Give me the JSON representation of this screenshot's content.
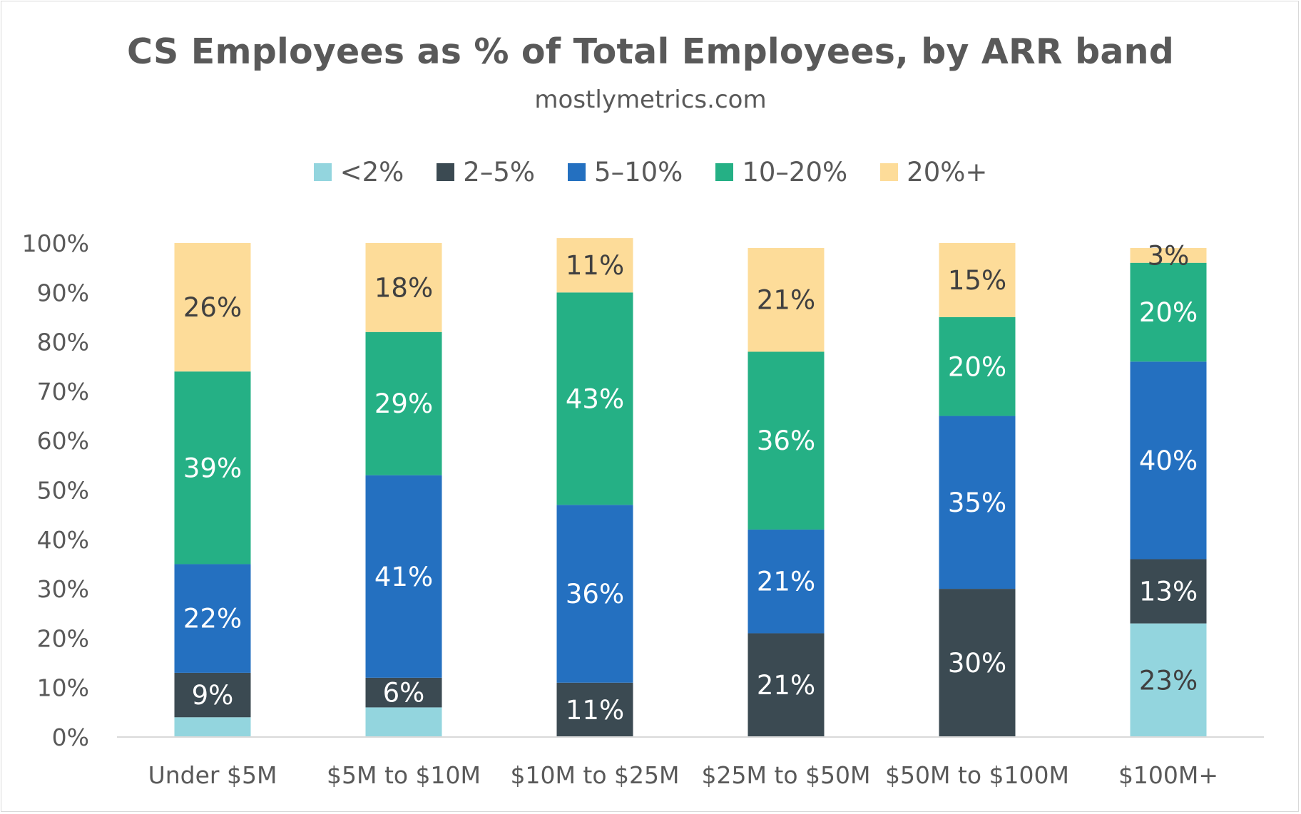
{
  "chart_data": {
    "type": "bar",
    "stacked": true,
    "title": "CS Employees as % of Total Employees, by ARR band",
    "subtitle": "mostlymetrics.com",
    "categories": [
      "Under $5M",
      "$5M to $10M",
      "$10M to $25M",
      "$25M to $50M",
      "$50M to $100M",
      "$100M+"
    ],
    "series": [
      {
        "name": "<2%",
        "color": "#93d5de",
        "label_color": "#404040",
        "values": [
          4,
          6,
          0,
          0,
          0,
          23
        ],
        "labels": [
          "",
          "",
          "",
          "",
          "",
          "23%"
        ]
      },
      {
        "name": "2–5%",
        "color": "#3b4a52",
        "label_color": "#ffffff",
        "values": [
          9,
          6,
          11,
          21,
          30,
          13
        ],
        "labels": [
          "9%",
          "6%",
          "11%",
          "21%",
          "30%",
          "13%"
        ]
      },
      {
        "name": "5–10%",
        "color": "#2470c0",
        "label_color": "#ffffff",
        "values": [
          22,
          41,
          36,
          21,
          35,
          40
        ],
        "labels": [
          "22%",
          "41%",
          "36%",
          "21%",
          "35%",
          "40%"
        ]
      },
      {
        "name": "10–20%",
        "color": "#25b085",
        "label_color": "#ffffff",
        "values": [
          39,
          29,
          43,
          36,
          20,
          20
        ],
        "labels": [
          "39%",
          "29%",
          "43%",
          "36%",
          "20%",
          "20%"
        ]
      },
      {
        "name": "20%+",
        "color": "#fddc99",
        "label_color": "#404040",
        "values": [
          26,
          18,
          11,
          21,
          15,
          3
        ],
        "labels": [
          "26%",
          "18%",
          "11%",
          "21%",
          "15%",
          "3%"
        ]
      }
    ],
    "yticks": [
      "0%",
      "10%",
      "20%",
      "30%",
      "40%",
      "50%",
      "60%",
      "70%",
      "80%",
      "90%",
      "100%"
    ],
    "ylim": [
      0,
      100
    ],
    "grid": false,
    "legend_position": "top-center"
  }
}
